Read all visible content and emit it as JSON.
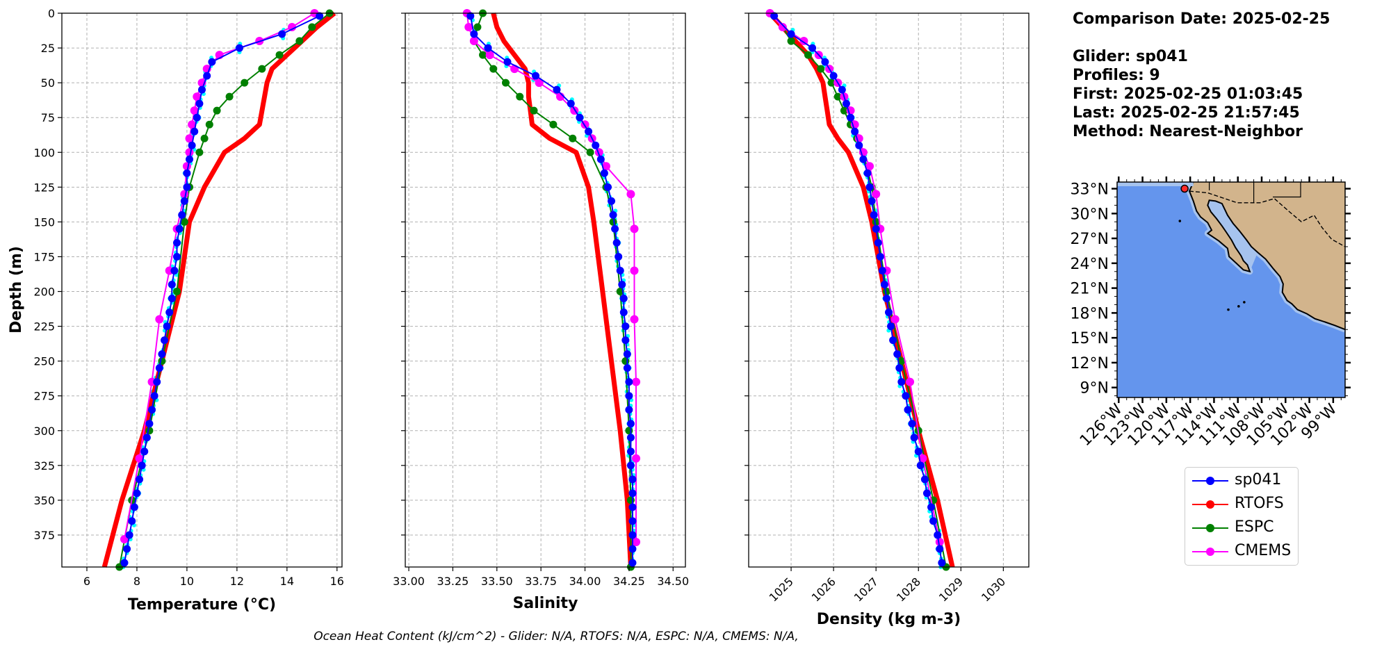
{
  "info": {
    "comparison": "Comparison Date: 2025-02-25",
    "glider": "Glider: sp041",
    "profiles": "Profiles: 9",
    "first": "First: 2025-02-25 01:03:45",
    "last": "Last: 2025-02-25 21:57:45",
    "method": "Method: Nearest-Neighbor"
  },
  "footer": "Ocean Heat Content (kJ/cm^2) - Glider: N/A,  RTOFS: N/A,  ESPC: N/A,  CMEMS: N/A,",
  "colors": {
    "sp041": "#0000ff",
    "RTOFS": "#ff0000",
    "ESPC": "#008000",
    "CMEMS": "#ff00ff",
    "raw": "#00ffff",
    "ocean": "#6495ed",
    "land": "#d2b48c",
    "shelf": "#a6c3ee"
  },
  "legend": [
    {
      "label": "sp041",
      "color": "#0000ff"
    },
    {
      "label": "RTOFS",
      "color": "#ff0000"
    },
    {
      "label": "ESPC",
      "color": "#008000"
    },
    {
      "label": "CMEMS",
      "color": "#ff00ff"
    }
  ],
  "chart_data": [
    {
      "type": "line",
      "xlabel": "Temperature (°C)",
      "ylabel": "Depth (m)",
      "xlim": [
        5,
        16.2
      ],
      "ylim": [
        398,
        0
      ],
      "xticks": [
        6,
        8,
        10,
        12,
        14,
        16
      ],
      "yticks": [
        0,
        25,
        50,
        75,
        100,
        125,
        150,
        175,
        200,
        225,
        250,
        275,
        300,
        325,
        350,
        375
      ],
      "grid": true,
      "series": [
        {
          "name": "sp041",
          "depth": [
            2,
            15,
            25,
            35,
            45,
            55,
            65,
            75,
            85,
            95,
            105,
            115,
            125,
            135,
            145,
            155,
            165,
            175,
            185,
            195,
            205,
            215,
            225,
            235,
            245,
            255,
            265,
            275,
            285,
            295,
            305,
            315,
            325,
            335,
            345,
            355,
            365,
            375,
            385,
            395
          ],
          "values": [
            15.3,
            13.8,
            12.1,
            11.0,
            10.8,
            10.6,
            10.5,
            10.4,
            10.3,
            10.2,
            10.1,
            10.0,
            10.0,
            9.9,
            9.8,
            9.7,
            9.6,
            9.6,
            9.5,
            9.4,
            9.4,
            9.3,
            9.2,
            9.1,
            9.0,
            8.9,
            8.8,
            8.7,
            8.6,
            8.5,
            8.4,
            8.3,
            8.2,
            8.1,
            8.0,
            7.9,
            7.8,
            7.7,
            7.6,
            7.5
          ]
        },
        {
          "name": "RTOFS",
          "depth": [
            0,
            10,
            20,
            30,
            40,
            50,
            60,
            70,
            80,
            90,
            100,
            125,
            150,
            200,
            250,
            300,
            350,
            398
          ],
          "values": [
            15.9,
            15.2,
            14.6,
            14.0,
            13.4,
            13.2,
            13.1,
            13.0,
            12.9,
            12.3,
            11.5,
            10.7,
            10.1,
            9.7,
            9.0,
            8.3,
            7.4,
            6.7
          ]
        },
        {
          "name": "ESPC",
          "depth": [
            0,
            10,
            20,
            30,
            40,
            50,
            60,
            70,
            80,
            90,
            100,
            125,
            150,
            200,
            250,
            300,
            350,
            398
          ],
          "values": [
            15.7,
            15.0,
            14.5,
            13.7,
            13.0,
            12.3,
            11.7,
            11.2,
            10.9,
            10.7,
            10.5,
            10.1,
            9.9,
            9.6,
            9.0,
            8.5,
            7.8,
            7.3
          ]
        },
        {
          "name": "CMEMS",
          "depth": [
            0,
            10,
            20,
            30,
            40,
            50,
            60,
            70,
            80,
            90,
            100,
            110,
            130,
            155,
            185,
            220,
            265,
            320,
            378
          ],
          "values": [
            15.1,
            14.2,
            12.9,
            11.3,
            10.8,
            10.6,
            10.4,
            10.3,
            10.2,
            10.1,
            10.1,
            10.0,
            9.9,
            9.6,
            9.3,
            8.9,
            8.6,
            8.1,
            7.5
          ]
        }
      ]
    },
    {
      "type": "line",
      "xlabel": "Salinity",
      "xlim": [
        32.98,
        34.57
      ],
      "ylim": [
        398,
        0
      ],
      "xticks": [
        33.0,
        33.25,
        33.5,
        33.75,
        34.0,
        34.25,
        34.5
      ],
      "xtick_labels": [
        "33.00",
        "33.25",
        "33.50",
        "33.75",
        "34.00",
        "34.25",
        "34.50"
      ],
      "grid": true,
      "series": [
        {
          "name": "sp041",
          "depth": [
            2,
            15,
            25,
            35,
            45,
            55,
            65,
            75,
            85,
            95,
            105,
            115,
            125,
            135,
            145,
            155,
            165,
            175,
            185,
            195,
            205,
            215,
            225,
            235,
            245,
            255,
            265,
            275,
            285,
            295,
            305,
            315,
            325,
            335,
            345,
            355,
            365,
            375,
            385,
            395
          ],
          "values": [
            33.35,
            33.37,
            33.45,
            33.56,
            33.72,
            33.84,
            33.92,
            33.97,
            34.02,
            34.06,
            34.09,
            34.11,
            34.13,
            34.15,
            34.16,
            34.17,
            34.18,
            34.19,
            34.2,
            34.21,
            34.22,
            34.22,
            34.23,
            34.23,
            34.24,
            34.24,
            34.25,
            34.25,
            34.25,
            34.26,
            34.26,
            34.26,
            34.26,
            34.27,
            34.27,
            34.27,
            34.27,
            34.27,
            34.27,
            34.27
          ]
        },
        {
          "name": "RTOFS",
          "depth": [
            0,
            10,
            20,
            30,
            40,
            50,
            60,
            70,
            80,
            90,
            100,
            125,
            150,
            200,
            250,
            300,
            350,
            398
          ],
          "values": [
            33.48,
            33.5,
            33.54,
            33.6,
            33.66,
            33.68,
            33.68,
            33.69,
            33.7,
            33.8,
            33.95,
            34.02,
            34.05,
            34.1,
            34.15,
            34.2,
            34.24,
            34.26
          ]
        },
        {
          "name": "ESPC",
          "depth": [
            0,
            10,
            20,
            30,
            40,
            50,
            60,
            70,
            80,
            90,
            100,
            125,
            150,
            200,
            250,
            300,
            350,
            398
          ],
          "values": [
            33.42,
            33.39,
            33.37,
            33.42,
            33.48,
            33.55,
            33.63,
            33.71,
            33.82,
            33.93,
            34.03,
            34.12,
            34.16,
            34.2,
            34.23,
            34.25,
            34.26,
            34.26
          ]
        },
        {
          "name": "CMEMS",
          "depth": [
            0,
            10,
            20,
            30,
            40,
            50,
            60,
            70,
            80,
            90,
            100,
            110,
            130,
            155,
            185,
            220,
            265,
            320,
            380
          ],
          "values": [
            33.33,
            33.34,
            33.37,
            33.46,
            33.6,
            33.74,
            33.86,
            33.94,
            34.0,
            34.04,
            34.08,
            34.12,
            34.26,
            34.28,
            34.28,
            34.28,
            34.29,
            34.29,
            34.29
          ]
        }
      ]
    },
    {
      "type": "line",
      "xlabel": "Density (kg m-3)",
      "xlim": [
        1024.0,
        1030.6
      ],
      "ylim": [
        398,
        0
      ],
      "xticks": [
        1025,
        1026,
        1027,
        1028,
        1029,
        1030
      ],
      "grid": true,
      "series": [
        {
          "name": "sp041",
          "depth": [
            2,
            15,
            25,
            35,
            45,
            55,
            65,
            75,
            85,
            95,
            105,
            115,
            125,
            135,
            145,
            155,
            165,
            175,
            185,
            195,
            205,
            215,
            225,
            235,
            245,
            255,
            265,
            275,
            285,
            295,
            305,
            315,
            325,
            335,
            345,
            355,
            365,
            375,
            385,
            395
          ],
          "values": [
            1024.6,
            1025.0,
            1025.5,
            1025.8,
            1026.0,
            1026.2,
            1026.3,
            1026.4,
            1026.5,
            1026.6,
            1026.7,
            1026.8,
            1026.85,
            1026.9,
            1026.95,
            1027.0,
            1027.05,
            1027.1,
            1027.15,
            1027.2,
            1027.25,
            1027.3,
            1027.35,
            1027.4,
            1027.5,
            1027.55,
            1027.6,
            1027.7,
            1027.75,
            1027.85,
            1027.9,
            1028.0,
            1028.05,
            1028.15,
            1028.2,
            1028.3,
            1028.35,
            1028.45,
            1028.5,
            1028.55
          ]
        },
        {
          "name": "RTOFS",
          "depth": [
            0,
            10,
            20,
            30,
            40,
            50,
            60,
            70,
            80,
            90,
            100,
            125,
            150,
            200,
            250,
            300,
            350,
            398
          ],
          "values": [
            1024.5,
            1024.8,
            1025.1,
            1025.4,
            1025.6,
            1025.75,
            1025.8,
            1025.85,
            1025.9,
            1026.1,
            1026.35,
            1026.7,
            1026.9,
            1027.2,
            1027.6,
            1028.0,
            1028.45,
            1028.8
          ]
        },
        {
          "name": "ESPC",
          "depth": [
            0,
            10,
            20,
            30,
            40,
            50,
            60,
            70,
            80,
            90,
            100,
            125,
            150,
            200,
            250,
            300,
            350,
            398
          ],
          "values": [
            1024.5,
            1024.8,
            1025.0,
            1025.4,
            1025.7,
            1025.95,
            1026.1,
            1026.25,
            1026.4,
            1026.55,
            1026.7,
            1026.9,
            1027.0,
            1027.25,
            1027.6,
            1028.0,
            1028.35,
            1028.65
          ]
        },
        {
          "name": "CMEMS",
          "depth": [
            0,
            10,
            20,
            30,
            40,
            50,
            60,
            70,
            80,
            90,
            100,
            110,
            130,
            155,
            185,
            220,
            265,
            320,
            380
          ],
          "values": [
            1024.5,
            1024.8,
            1025.3,
            1025.65,
            1025.9,
            1026.1,
            1026.25,
            1026.4,
            1026.5,
            1026.6,
            1026.7,
            1026.85,
            1027.0,
            1027.1,
            1027.25,
            1027.45,
            1027.8,
            1028.1,
            1028.5
          ]
        }
      ]
    }
  ],
  "map": {
    "lat_labels": [
      "33°N",
      "30°N",
      "27°N",
      "24°N",
      "21°N",
      "18°N",
      "15°N",
      "12°N",
      "9°N"
    ],
    "lon_labels": [
      "126°W",
      "123°W",
      "120°W",
      "117°W",
      "114°W",
      "111°W",
      "108°W",
      "105°W",
      "102°W",
      "99°W"
    ],
    "lat_values": [
      33,
      30,
      27,
      24,
      21,
      18,
      15,
      12,
      9
    ],
    "lon_values": [
      -126,
      -123,
      -120,
      -117,
      -114,
      -111,
      -108,
      -105,
      -102,
      -99
    ],
    "lon_range": [
      -126.2,
      -97.5
    ],
    "lat_range": [
      7.8,
      33.8
    ],
    "glider_position": {
      "lat": 33.0,
      "lon": -117.7
    },
    "coastline": [
      [
        -116.6,
        33.8
      ],
      [
        -117.1,
        32.7
      ],
      [
        -116.6,
        31.5
      ],
      [
        -116.2,
        30.3
      ],
      [
        -115.7,
        29.6
      ],
      [
        -114.8,
        28.9
      ],
      [
        -114.3,
        28.0
      ],
      [
        -114.8,
        27.6
      ],
      [
        -113.4,
        26.7
      ],
      [
        -112.3,
        25.8
      ],
      [
        -112.1,
        24.8
      ],
      [
        -111.3,
        24.1
      ],
      [
        -110.3,
        23.2
      ],
      [
        -109.5,
        23.0
      ],
      [
        -109.8,
        23.8
      ],
      [
        -110.3,
        24.3
      ],
      [
        -110.6,
        24.9
      ],
      [
        -111.3,
        25.9
      ],
      [
        -111.8,
        26.8
      ],
      [
        -112.5,
        27.8
      ],
      [
        -113.0,
        28.5
      ],
      [
        -113.7,
        29.4
      ],
      [
        -114.4,
        30.2
      ],
      [
        -114.8,
        31.0
      ],
      [
        -114.6,
        31.6
      ],
      [
        -113.8,
        31.5
      ],
      [
        -113.0,
        31.2
      ],
      [
        -112.3,
        29.8
      ],
      [
        -111.6,
        28.8
      ],
      [
        -110.8,
        27.9
      ],
      [
        -109.9,
        26.8
      ],
      [
        -109.3,
        26.0
      ],
      [
        -108.5,
        25.3
      ],
      [
        -107.5,
        24.5
      ],
      [
        -106.5,
        23.3
      ],
      [
        -105.7,
        22.4
      ],
      [
        -105.3,
        21.5
      ],
      [
        -105.4,
        20.5
      ],
      [
        -104.8,
        19.5
      ],
      [
        -104.2,
        19.1
      ],
      [
        -103.5,
        18.4
      ],
      [
        -102.3,
        17.9
      ],
      [
        -101.3,
        17.3
      ],
      [
        -100.0,
        16.9
      ],
      [
        -98.8,
        16.5
      ],
      [
        -97.5,
        16.0
      ]
    ],
    "border": [
      [
        -117.1,
        32.7
      ],
      [
        -114.8,
        32.5
      ],
      [
        -111.1,
        31.3
      ],
      [
        -108.2,
        31.3
      ],
      [
        -106.4,
        31.8
      ],
      [
        -104.5,
        30.2
      ],
      [
        -103.0,
        29.0
      ],
      [
        -101.4,
        29.8
      ],
      [
        -100.4,
        28.3
      ],
      [
        -99.2,
        26.9
      ],
      [
        -97.5,
        26.0
      ]
    ],
    "state_lines": [
      [
        [
          -114.6,
          33.8
        ],
        [
          -114.6,
          32.8
        ]
      ],
      [
        [
          -109.0,
          33.8
        ],
        [
          -109.0,
          31.3
        ]
      ],
      [
        [
          -103.1,
          33.8
        ],
        [
          -103.1,
          32.0
        ],
        [
          -106.6,
          32.0
        ]
      ]
    ],
    "islands": [
      [
        -118.3,
        29.1
      ],
      [
        -110.9,
        18.8
      ],
      [
        -112.2,
        18.4
      ],
      [
        -110.2,
        19.3
      ]
    ]
  }
}
